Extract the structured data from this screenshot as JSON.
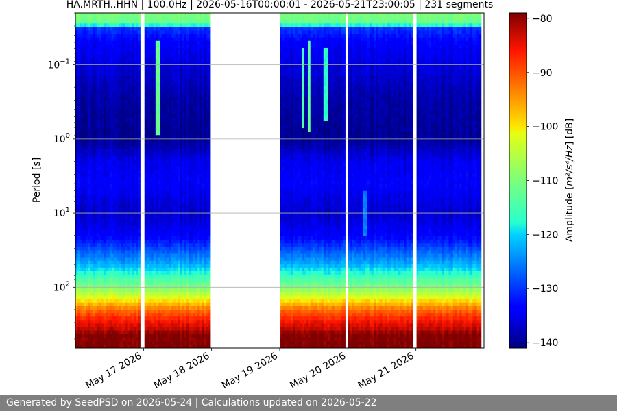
{
  "chart_data": {
    "type": "heatmap",
    "title": "HA.MRTH..HHN | 100.0Hz | 2026-05-16T00:00:01 - 2026-05-21T23:00:05 | 231 segments",
    "xlabel": "",
    "ylabel": "Period [s]",
    "y_scale": "log",
    "y_inverted": true,
    "xlim": [
      "2026-05-16T00:00:00",
      "2026-05-22T00:00:00"
    ],
    "ylim_period_s": [
      0.02,
      660
    ],
    "x_ticks": [
      {
        "date": "2026-05-17",
        "label": "May 17 2026"
      },
      {
        "date": "2026-05-18",
        "label": "May 18 2026"
      },
      {
        "date": "2026-05-19",
        "label": "May 19 2026"
      },
      {
        "date": "2026-05-20",
        "label": "May 20 2026"
      },
      {
        "date": "2026-05-21",
        "label": "May 21 2026"
      }
    ],
    "y_ticks": [
      {
        "period_s": 0.1,
        "base": "10",
        "exp": "−1"
      },
      {
        "period_s": 1,
        "base": "10",
        "exp": "0"
      },
      {
        "period_s": 10,
        "base": "10",
        "exp": "1"
      },
      {
        "period_s": 100,
        "base": "10",
        "exp": "2"
      }
    ],
    "grid": "horizontal",
    "colorbar": {
      "label_prefix": "Amplitude [",
      "label_math": "m²/s⁴/Hz",
      "label_suffix": "] [dB]",
      "range_db": [
        -141,
        -79
      ],
      "ticks": [
        "−80",
        "−90",
        "−100",
        "−110",
        "−120",
        "−130",
        "−140"
      ],
      "tick_values": [
        -80,
        -90,
        -100,
        -110,
        -120,
        -130,
        -140
      ],
      "colormap": "jet"
    },
    "segments": [
      {
        "start": "2026-05-16T00:00:00",
        "end": "2026-05-16T22:50:00"
      },
      {
        "start": "2026-05-17T00:20:00",
        "end": "2026-05-17T23:45:00"
      },
      {
        "start": "2026-05-19T00:05:00",
        "end": "2026-05-19T23:05:00"
      },
      {
        "start": "2026-05-19T23:55:00",
        "end": "2026-05-20T22:55:00"
      },
      {
        "start": "2026-05-21T00:05:00",
        "end": "2026-05-21T23:00:00"
      }
    ],
    "gap_lines": [
      "2026-05-16T23:55:00",
      "2026-05-17T23:55:00",
      "2026-05-19T23:40:00",
      "2026-05-21T00:00:00"
    ],
    "psd_profile_db": [
      {
        "period_s": 0.02,
        "db": -110
      },
      {
        "period_s": 0.028,
        "db": -112
      },
      {
        "period_s": 0.032,
        "db": -130
      },
      {
        "period_s": 0.05,
        "db": -134
      },
      {
        "period_s": 0.1,
        "db": -136
      },
      {
        "period_s": 0.3,
        "db": -139
      },
      {
        "period_s": 1,
        "db": -140
      },
      {
        "period_s": 2,
        "db": -135
      },
      {
        "period_s": 4,
        "db": -134
      },
      {
        "period_s": 10,
        "db": -137
      },
      {
        "period_s": 20,
        "db": -134
      },
      {
        "period_s": 50,
        "db": -122
      },
      {
        "period_s": 100,
        "db": -110
      },
      {
        "period_s": 150,
        "db": -100
      },
      {
        "period_s": 200,
        "db": -92
      },
      {
        "period_s": 280,
        "db": -86
      },
      {
        "period_s": 380,
        "db": -82
      },
      {
        "period_s": 430,
        "db": -79
      },
      {
        "period_s": 660,
        "db": -79
      }
    ],
    "spikes": [
      {
        "time": "2026-05-17T05:00:00",
        "period_min_s": 0.05,
        "period_max_s": 0.9,
        "db": -112
      },
      {
        "time": "2026-05-19T08:00:00",
        "period_min_s": 0.06,
        "period_max_s": 0.7,
        "db": -115
      },
      {
        "time": "2026-05-19T10:30:00",
        "period_min_s": 0.05,
        "period_max_s": 0.8,
        "db": -113
      },
      {
        "time": "2026-05-19T16:00:00",
        "period_min_s": 0.06,
        "period_max_s": 0.6,
        "db": -117
      },
      {
        "time": "2026-05-20T06:00:00",
        "period_min_s": 5,
        "period_max_s": 20,
        "db": -125
      }
    ]
  },
  "footer": {
    "text": "Generated by SeedPSD on 2026-05-24 | Calculations updated on 2026-05-22"
  }
}
